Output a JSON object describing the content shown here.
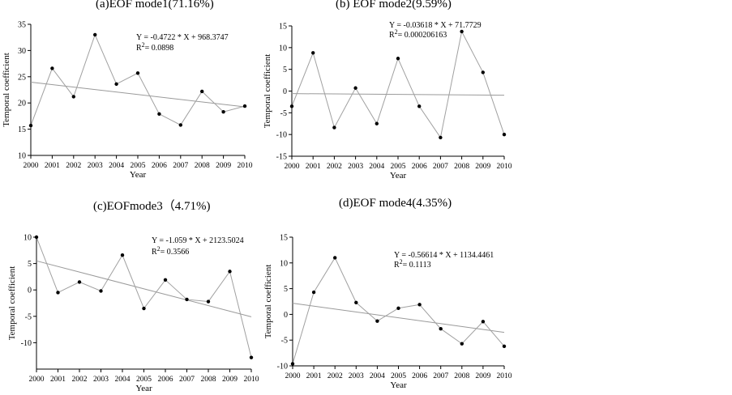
{
  "chart_data": [
    {
      "type": "line",
      "title": "(a)EOF  mode1(71.16%)",
      "xlabel": "Year",
      "ylabel": "Temporal coefficient",
      "x": [
        2000,
        2001,
        2002,
        2003,
        2004,
        2005,
        2006,
        2007,
        2008,
        2009,
        2010
      ],
      "values": [
        15.7,
        26.6,
        21.2,
        33.0,
        23.6,
        25.7,
        17.9,
        15.8,
        22.2,
        18.3,
        19.4
      ],
      "xlim": [
        2000,
        2010
      ],
      "ylim": [
        10,
        35
      ],
      "yticks": [
        10,
        15,
        20,
        25,
        30,
        35
      ],
      "trend": {
        "slope": -0.4722,
        "intercept": 968.3747
      },
      "equation": "Y = -0.4722 * X + 968.3747",
      "r2_prefix": "R",
      "r2_value": "= 0.0898"
    },
    {
      "type": "line",
      "title": "(b) EOF mode2(9.59%)",
      "xlabel": "Year",
      "ylabel": "Temporal coefficient",
      "x": [
        2000,
        2001,
        2002,
        2003,
        2004,
        2005,
        2006,
        2007,
        2008,
        2009,
        2010
      ],
      "values": [
        -3.5,
        8.8,
        -8.4,
        0.7,
        -7.5,
        7.5,
        -3.5,
        -10.7,
        13.7,
        4.3,
        -10.0
      ],
      "xlim": [
        2000,
        2010
      ],
      "ylim": [
        -15,
        15
      ],
      "yticks": [
        -15,
        -10,
        -5,
        0,
        5,
        10,
        15
      ],
      "trend": {
        "slope": -0.03618,
        "intercept": 71.7729
      },
      "equation": "Y = -0.03618 * X + 71.7729",
      "r2_prefix": "R",
      "r2_value": "= 0.000206163"
    },
    {
      "type": "line",
      "title": "(c)EOFmode3（4.71%)",
      "xlabel": "Year",
      "ylabel": "Temporal coefficient",
      "x": [
        2000,
        2001,
        2002,
        2003,
        2004,
        2005,
        2006,
        2007,
        2008,
        2009,
        2010
      ],
      "values": [
        10.0,
        -0.5,
        1.5,
        -0.2,
        6.6,
        -3.5,
        1.9,
        -1.8,
        -2.2,
        3.5,
        -12.8
      ],
      "xlim": [
        2000,
        2010
      ],
      "ylim": [
        -15,
        10
      ],
      "yticks": [
        -10,
        -5,
        0,
        5,
        10
      ],
      "trend": {
        "slope": -1.059,
        "intercept": 2123.5024
      },
      "equation": "Y = -1.059 * X + 2123.5024",
      "r2_prefix": "R",
      "r2_value": "= 0.3566"
    },
    {
      "type": "line",
      "title": "(d)EOF mode4(4.35%)",
      "xlabel": "Year",
      "ylabel": "Temporal coefficient",
      "x": [
        2000,
        2001,
        2002,
        2003,
        2004,
        2005,
        2006,
        2007,
        2008,
        2009,
        2010
      ],
      "values": [
        -9.6,
        4.3,
        11.0,
        2.3,
        -1.3,
        1.2,
        1.9,
        -2.8,
        -5.7,
        -1.4,
        -6.2
      ],
      "xlim": [
        2000,
        2010
      ],
      "ylim": [
        -10,
        15
      ],
      "yticks": [
        -10,
        -5,
        0,
        5,
        10,
        15
      ],
      "trend": {
        "slope": -0.56614,
        "intercept": 1134.4461
      },
      "equation": "Y = -0.56614 * X + 1134.4461",
      "r2_prefix": "R",
      "r2_value": "= 0.1113"
    }
  ]
}
